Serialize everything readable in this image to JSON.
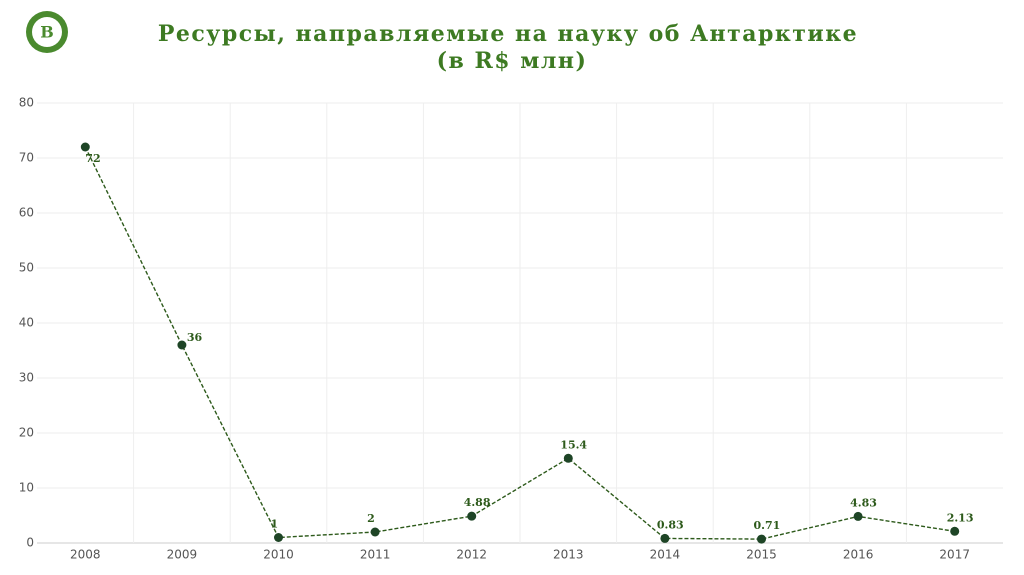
{
  "chart_data": {
    "type": "line",
    "title": "Ресурсы, направляемые на науку об Антарктике",
    "subtitle": "(в R$ млн)",
    "categories": [
      "2008",
      "2009",
      "2010",
      "2011",
      "2012",
      "2013",
      "2014",
      "2015",
      "2016",
      "2017"
    ],
    "values": [
      72,
      36,
      1,
      2,
      4.88,
      15.4,
      0.83,
      0.71,
      4.83,
      2.13
    ],
    "color": "#2d5a1b",
    "marker_color": "#1e4526",
    "dashed": true,
    "ylim": [
      0,
      80
    ],
    "yticks": [
      0,
      10,
      20,
      30,
      40,
      50,
      60,
      70,
      80
    ],
    "grid": true
  }
}
